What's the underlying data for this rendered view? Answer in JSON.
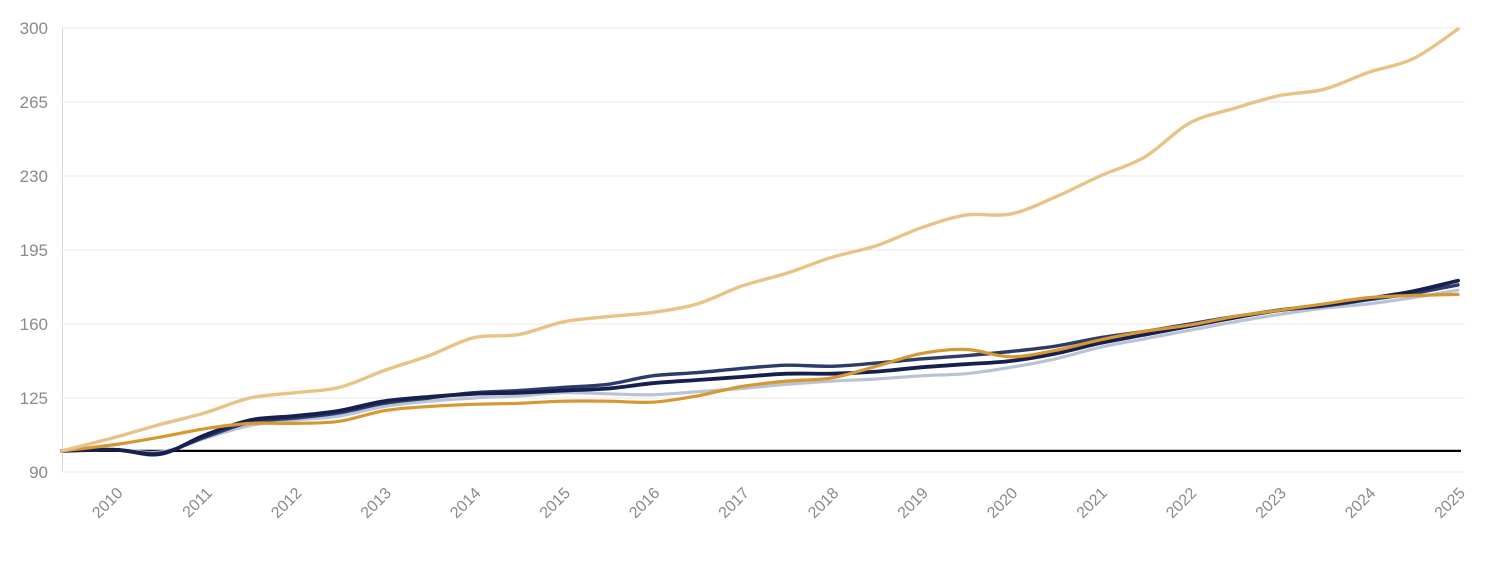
{
  "chart_data": {
    "type": "line",
    "title": "",
    "subtitle": "",
    "legend": "none",
    "grid": "horizontal",
    "baseline": {
      "name": "index-base-100",
      "value": 100,
      "color": "#000000"
    },
    "axis": {
      "x_min": 2009.4,
      "x_max": 2025,
      "y_min": 90,
      "y_max": 300,
      "grid_color": "#e9e9e9",
      "axis_line_color": "#d9d9d9",
      "tick_label_color": "#8a8a8a"
    },
    "y_ticks": [
      300,
      265,
      230,
      195,
      160,
      125,
      90
    ],
    "x_tick_years": [
      2010,
      2011,
      2012,
      2013,
      2014,
      2015,
      2016,
      2017,
      2018,
      2019,
      2020,
      2021,
      2022,
      2023,
      2024,
      2025
    ],
    "x_tick_labels": [
      "2010",
      "2011",
      "2012",
      "2013",
      "2014",
      "2015",
      "2016",
      "2017",
      "2018",
      "2019",
      "2020",
      "2021",
      "2022",
      "2023",
      "2024",
      "2025"
    ],
    "x": [
      2009.4,
      2010,
      2010.5,
      2011,
      2011.5,
      2012,
      2012.5,
      2013,
      2013.5,
      2014,
      2014.5,
      2015,
      2015.5,
      2016,
      2016.5,
      2017,
      2017.5,
      2018,
      2018.5,
      2019,
      2019.5,
      2020,
      2020.5,
      2021,
      2021.5,
      2022,
      2022.5,
      2023,
      2023.5,
      2024,
      2024.5,
      2025
    ],
    "series": [
      {
        "name": "light-blue-line",
        "color": "#b8c4d6",
        "width": 3.2,
        "values": [
          100,
          100.5,
          99.5,
          106,
          112,
          114.5,
          116.5,
          121,
          123.5,
          125,
          126,
          127.5,
          127,
          126.5,
          128,
          129.5,
          131.5,
          133,
          134,
          135.5,
          136.5,
          139.5,
          143.5,
          149,
          153,
          157,
          161,
          164.5,
          167.5,
          169.5,
          172.5,
          176
        ]
      },
      {
        "name": "slate-navy-line",
        "color": "#2b3c6b",
        "width": 3.4,
        "values": [
          100,
          100.5,
          99,
          106.5,
          113.5,
          115.5,
          118,
          122.5,
          125,
          127.5,
          128.5,
          130,
          131.5,
          135.5,
          137,
          139,
          140.5,
          140,
          141.5,
          143.5,
          145,
          147,
          149.5,
          153.5,
          156.5,
          160,
          163.5,
          166.5,
          168.5,
          171.5,
          174.5,
          178.5
        ]
      },
      {
        "name": "dark-navy-line",
        "color": "#161f4e",
        "width": 3.8,
        "values": [
          100,
          100.5,
          98.5,
          107.5,
          114.5,
          116.5,
          119,
          123.5,
          125.5,
          127,
          127.5,
          128.5,
          129.5,
          132,
          133.5,
          135,
          136.5,
          136.5,
          137.5,
          139.5,
          141,
          142.5,
          146,
          151,
          155,
          159,
          163,
          166.5,
          169,
          172,
          175.5,
          180.5
        ]
      },
      {
        "name": "orange-line",
        "color": "#d79731",
        "width": 3.2,
        "values": [
          100,
          103,
          106.5,
          110.5,
          113,
          113,
          114,
          119,
          121,
          122,
          122.5,
          123.5,
          123.5,
          123,
          126,
          130.5,
          133,
          134.5,
          140,
          146,
          148,
          144.5,
          147.5,
          152.5,
          156.5,
          159.5,
          163.5,
          166.5,
          169.5,
          172.5,
          173.5,
          174
        ]
      },
      {
        "name": "light-tan-line",
        "color": "#e7c386",
        "width": 3.4,
        "values": [
          100,
          106.5,
          112.5,
          118,
          125,
          127.5,
          130,
          138,
          145,
          153.5,
          155,
          161,
          163.5,
          165.5,
          169.5,
          178,
          184,
          191.5,
          197,
          205.5,
          211.5,
          212,
          220,
          230,
          239,
          255,
          262,
          268,
          271,
          279,
          285.5,
          299.5
        ]
      }
    ]
  }
}
